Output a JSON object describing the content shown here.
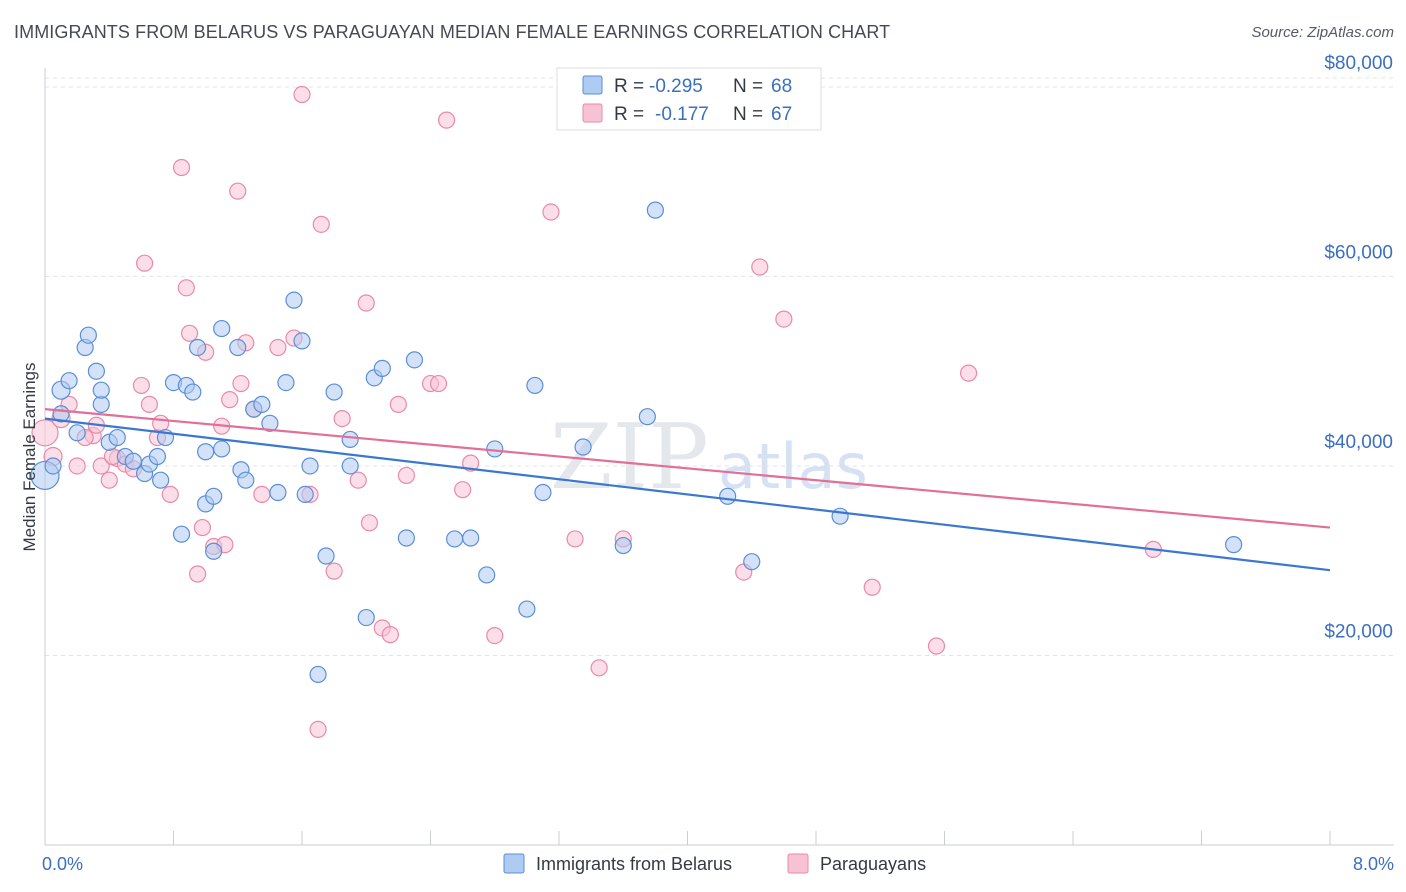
{
  "title": "IMMIGRANTS FROM BELARUS VS PARAGUAYAN MEDIAN FEMALE EARNINGS CORRELATION CHART",
  "source": "Source: ZipAtlas.com",
  "watermark": {
    "zip": "ZIP",
    "atlas": "atlas"
  },
  "legend": {
    "r_label": "R =",
    "n_label": "N =",
    "belarus": {
      "r": "-0.295",
      "n": "68"
    },
    "paraguay": {
      "r": "-0.177",
      "n": "67"
    }
  },
  "bottom_legend": {
    "belarus": "Immigrants from Belarus",
    "paraguay": "Paraguayans"
  },
  "colors": {
    "belarus_fill": "#aecbf3",
    "belarus_stroke": "#5b8fd6",
    "belarus_line": "#3a78d0",
    "paraguay_fill": "#f7c3d4",
    "paraguay_stroke": "#e88aab",
    "paraguay_line": "#e36e98",
    "tick_text": "#3b6fc0",
    "grid": "#dfe3ea"
  },
  "chart_data": {
    "type": "scatter",
    "title": "IMMIGRANTS FROM BELARUS VS PARAGUAYAN MEDIAN FEMALE EARNINGS CORRELATION CHART",
    "xlabel": "",
    "ylabel": "Median Female Earnings",
    "xlim": [
      0,
      8.4
    ],
    "ylim": [
      0,
      82000
    ],
    "x_tick_labels": [
      "0.0%",
      "8.0%"
    ],
    "y_ticks": [
      {
        "value": 20000,
        "label": "$20,000"
      },
      {
        "value": 40000,
        "label": "$40,000"
      },
      {
        "value": 60000,
        "label": "$60,000"
      },
      {
        "value": 80000,
        "label": "$80,000"
      }
    ],
    "series": [
      {
        "name": "Immigrants from Belarus",
        "r": -0.295,
        "n": 68,
        "trend": {
          "x": [
            0,
            8.0
          ],
          "y": [
            45000,
            29000
          ]
        },
        "points": [
          [
            0.0,
            39000,
            14
          ],
          [
            0.1,
            48000,
            9
          ],
          [
            0.1,
            45500,
            8
          ],
          [
            0.15,
            49000,
            8
          ],
          [
            0.25,
            52500,
            8
          ],
          [
            0.27,
            53800,
            8
          ],
          [
            0.32,
            50000,
            8
          ],
          [
            0.35,
            46500,
            8
          ],
          [
            0.35,
            48000,
            8
          ],
          [
            0.4,
            42500,
            8
          ],
          [
            0.45,
            43000,
            8
          ],
          [
            0.5,
            41000,
            8
          ],
          [
            0.55,
            40500,
            8
          ],
          [
            0.62,
            39200,
            8
          ],
          [
            0.65,
            40200,
            8
          ],
          [
            0.7,
            41000,
            8
          ],
          [
            0.72,
            38500,
            8
          ],
          [
            0.75,
            43000,
            8
          ],
          [
            0.8,
            48800,
            8
          ],
          [
            0.85,
            32800,
            8
          ],
          [
            0.88,
            48500,
            8
          ],
          [
            0.92,
            47800,
            8
          ],
          [
            0.95,
            52500,
            8
          ],
          [
            1.0,
            41500,
            8
          ],
          [
            1.0,
            36000,
            8
          ],
          [
            1.05,
            36800,
            8
          ],
          [
            1.05,
            31000,
            8
          ],
          [
            1.1,
            41800,
            8
          ],
          [
            1.1,
            54500,
            8
          ],
          [
            1.2,
            52500,
            8
          ],
          [
            1.22,
            39600,
            8
          ],
          [
            1.25,
            38500,
            8
          ],
          [
            1.3,
            46000,
            8
          ],
          [
            1.35,
            46500,
            8
          ],
          [
            1.4,
            44500,
            8
          ],
          [
            1.45,
            37200,
            8
          ],
          [
            1.5,
            48800,
            8
          ],
          [
            1.55,
            57500,
            8
          ],
          [
            1.6,
            53200,
            8
          ],
          [
            1.62,
            37000,
            8
          ],
          [
            1.65,
            40000,
            8
          ],
          [
            1.7,
            18000,
            8
          ],
          [
            1.75,
            30500,
            8
          ],
          [
            1.8,
            47800,
            8
          ],
          [
            1.9,
            40000,
            8
          ],
          [
            1.9,
            42800,
            8
          ],
          [
            2.0,
            24000,
            8
          ],
          [
            2.05,
            49300,
            8
          ],
          [
            2.1,
            50300,
            8
          ],
          [
            2.25,
            32400,
            8
          ],
          [
            2.3,
            51200,
            8
          ],
          [
            2.55,
            32300,
            8
          ],
          [
            2.65,
            32400,
            8
          ],
          [
            2.75,
            28500,
            8
          ],
          [
            2.8,
            41800,
            8
          ],
          [
            3.0,
            24900,
            8
          ],
          [
            3.05,
            48500,
            8
          ],
          [
            3.1,
            37200,
            8
          ],
          [
            3.35,
            42000,
            8
          ],
          [
            3.6,
            31600,
            8
          ],
          [
            3.75,
            45200,
            8
          ],
          [
            3.8,
            67000,
            8
          ],
          [
            4.25,
            36800,
            8
          ],
          [
            4.4,
            29900,
            8
          ],
          [
            4.95,
            34700,
            8
          ],
          [
            7.4,
            31700,
            8
          ],
          [
            0.05,
            40000,
            8
          ],
          [
            0.2,
            43500,
            8
          ]
        ]
      },
      {
        "name": "Paraguayans",
        "r": -0.177,
        "n": 67,
        "trend": {
          "x": [
            0,
            8.0
          ],
          "y": [
            46000,
            33500
          ]
        },
        "points": [
          [
            0.0,
            43500,
            13
          ],
          [
            0.05,
            41000,
            9
          ],
          [
            0.1,
            45000,
            9
          ],
          [
            0.15,
            46500,
            8
          ],
          [
            0.2,
            40000,
            8
          ],
          [
            0.3,
            43200,
            8
          ],
          [
            0.32,
            44300,
            8
          ],
          [
            0.35,
            40000,
            8
          ],
          [
            0.4,
            38500,
            8
          ],
          [
            0.45,
            40800,
            8
          ],
          [
            0.5,
            40200,
            8
          ],
          [
            0.55,
            39700,
            8
          ],
          [
            0.6,
            48500,
            8
          ],
          [
            0.62,
            61400,
            8
          ],
          [
            0.65,
            46500,
            8
          ],
          [
            0.7,
            43000,
            8
          ],
          [
            0.72,
            44500,
            8
          ],
          [
            0.78,
            37000,
            8
          ],
          [
            0.85,
            71500,
            8
          ],
          [
            0.88,
            58800,
            8
          ],
          [
            0.9,
            54000,
            8
          ],
          [
            0.95,
            28600,
            8
          ],
          [
            0.98,
            33500,
            8
          ],
          [
            1.0,
            52000,
            8
          ],
          [
            1.05,
            31500,
            8
          ],
          [
            1.1,
            44200,
            8
          ],
          [
            1.12,
            31700,
            8
          ],
          [
            1.15,
            47000,
            8
          ],
          [
            1.2,
            69000,
            8
          ],
          [
            1.25,
            53000,
            8
          ],
          [
            1.3,
            46000,
            8
          ],
          [
            1.35,
            37000,
            8
          ],
          [
            1.45,
            52500,
            8
          ],
          [
            1.55,
            53500,
            8
          ],
          [
            1.6,
            79200,
            8
          ],
          [
            1.65,
            37000,
            8
          ],
          [
            1.7,
            12200,
            8
          ],
          [
            1.72,
            65500,
            8
          ],
          [
            1.8,
            28900,
            8
          ],
          [
            1.85,
            45000,
            8
          ],
          [
            1.95,
            38500,
            8
          ],
          [
            2.0,
            57200,
            8
          ],
          [
            2.02,
            34000,
            8
          ],
          [
            2.1,
            22900,
            8
          ],
          [
            2.15,
            22200,
            8
          ],
          [
            2.2,
            46500,
            8
          ],
          [
            2.25,
            39000,
            8
          ],
          [
            2.4,
            48700,
            8
          ],
          [
            2.45,
            48700,
            8
          ],
          [
            2.5,
            76500,
            8
          ],
          [
            2.6,
            37500,
            8
          ],
          [
            2.65,
            40300,
            8
          ],
          [
            2.8,
            22100,
            8
          ],
          [
            3.15,
            66800,
            8
          ],
          [
            3.3,
            32300,
            8
          ],
          [
            3.45,
            18700,
            8
          ],
          [
            3.6,
            32300,
            8
          ],
          [
            4.35,
            28800,
            8
          ],
          [
            4.45,
            61000,
            8
          ],
          [
            4.6,
            55500,
            8
          ],
          [
            5.15,
            27200,
            8
          ],
          [
            5.55,
            21000,
            8
          ],
          [
            5.75,
            49800,
            8
          ],
          [
            6.9,
            31200,
            8
          ],
          [
            0.25,
            43000,
            8
          ],
          [
            0.42,
            41000,
            8
          ],
          [
            1.22,
            48700,
            8
          ]
        ]
      }
    ]
  }
}
